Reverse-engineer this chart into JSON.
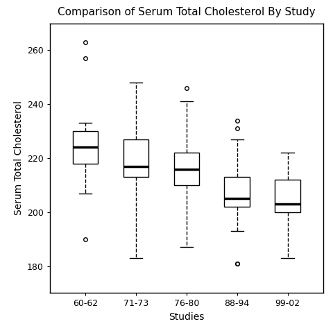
{
  "title": "Comparison of Serum Total Cholesterol By Study",
  "xlabel": "Studies",
  "ylabel": "Serum Total Cholesterol",
  "categories": [
    "60-62",
    "71-73",
    "76-80",
    "88-94",
    "99-02"
  ],
  "boxplot_stats": [
    {
      "label": "60-62",
      "med": 224,
      "q1": 218,
      "q3": 230,
      "whislo": 207,
      "whishi": 233,
      "fliers": [
        263,
        257,
        190
      ]
    },
    {
      "label": "71-73",
      "med": 217,
      "q1": 213,
      "q3": 227,
      "whislo": 183,
      "whishi": 248,
      "fliers": []
    },
    {
      "label": "76-80",
      "med": 216,
      "q1": 210,
      "q3": 222,
      "whislo": 187,
      "whishi": 241,
      "fliers": [
        246
      ]
    },
    {
      "label": "88-94",
      "med": 205,
      "q1": 202,
      "q3": 213,
      "whislo": 193,
      "whishi": 227,
      "fliers": [
        234,
        231,
        181,
        181
      ]
    },
    {
      "label": "99-02",
      "med": 203,
      "q1": 200,
      "q3": 212,
      "whislo": 183,
      "whishi": 222,
      "fliers": []
    }
  ],
  "ylim": [
    170,
    270
  ],
  "yticks": [
    180,
    200,
    220,
    240,
    260
  ],
  "background_color": "#ffffff",
  "box_facecolor": "#ffffff",
  "box_edgecolor": "#000000",
  "median_color": "#000000",
  "whisker_color": "#000000",
  "cap_color": "#000000",
  "flier_color": "#000000",
  "title_fontsize": 11,
  "label_fontsize": 10,
  "tick_fontsize": 9
}
